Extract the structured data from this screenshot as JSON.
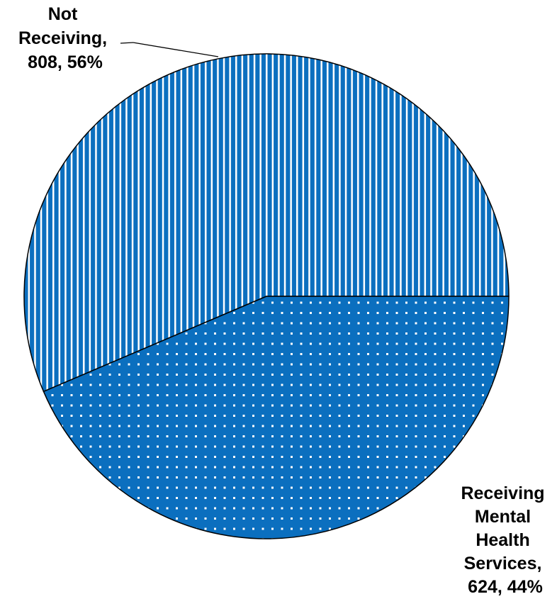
{
  "chart_data": {
    "type": "pie",
    "title": "",
    "slices": [
      {
        "label_lines": [
          "Not",
          "Receiving,",
          "808, 56%"
        ],
        "label": "Not Receiving",
        "value": 808,
        "percent": "56%",
        "color": "#0B6FBF",
        "pattern": "vertical-stripes"
      },
      {
        "label_lines": [
          "Receiving",
          "Mental",
          "Health",
          "Services,",
          "624, 44%"
        ],
        "label": "Receiving Mental Health Services",
        "value": 624,
        "percent": "44%",
        "color": "#0B6FBF",
        "pattern": "dots"
      }
    ],
    "legend": "none"
  }
}
